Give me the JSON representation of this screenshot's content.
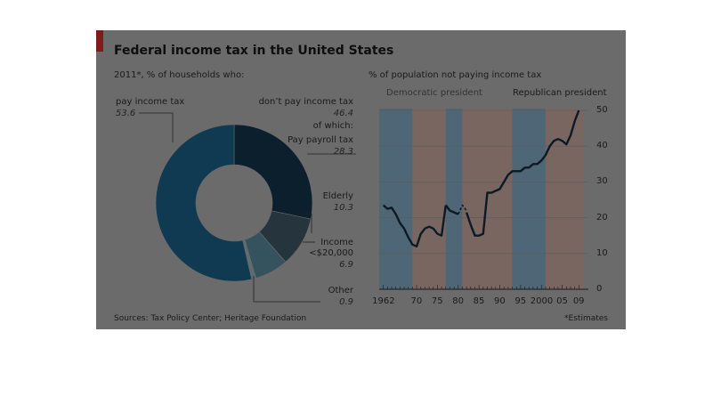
{
  "title": "Federal income tax in the United States",
  "left_subtitle": "2011*, % of households who:",
  "right_subtitle": "% of population not paying income tax",
  "sources": "Sources: Tax Policy Center; Heritage Foundation",
  "footnote": "*Estimates",
  "colors": {
    "panel_bg": "#6b6b6b",
    "pay": "#0f3a52",
    "dont_payroll": "#0b1f2c",
    "elderly": "#26343e",
    "income": "#35525f",
    "other": "#5e6c72",
    "dem_band": "#4f6676",
    "rep_band": "#7a6661",
    "line": "#0b1a24",
    "accent": "#7e1b1b"
  },
  "chart_data": [
    {
      "type": "pie",
      "variant": "donut",
      "title": "",
      "subtitle": "2011*, % of households who:",
      "labels": {
        "pay": "pay income tax",
        "dont_pay": "don’t pay income tax",
        "of_which": "of which:",
        "payroll": "Pay payroll tax",
        "elderly": "Elderly",
        "income": "Income\n<$20,000",
        "other": "Other"
      },
      "values_text": {
        "pay": "53.6",
        "dont_pay": "46.4",
        "payroll": "28.3",
        "elderly": "10.3",
        "income": "6.9",
        "other": "0.9"
      },
      "slices": [
        {
          "key": "payroll",
          "value": 28.3
        },
        {
          "key": "elderly",
          "value": 10.3
        },
        {
          "key": "income",
          "value": 6.9
        },
        {
          "key": "other",
          "value": 0.9
        },
        {
          "key": "pay",
          "value": 53.6
        }
      ]
    },
    {
      "type": "line",
      "title": "% of population not paying income tax",
      "legend": {
        "dem": "Democratic president",
        "rep": "Republican president",
        "placement": "top"
      },
      "x_ticks": [
        "1962",
        "70",
        "75",
        "80",
        "85",
        "90",
        "95",
        "2000",
        "05",
        "09"
      ],
      "x_tick_values": [
        1962,
        1970,
        1975,
        1980,
        1985,
        1990,
        1995,
        2000,
        2005,
        2009
      ],
      "y_ticks": [
        "0",
        "10",
        "20",
        "30",
        "40",
        "50"
      ],
      "y_tick_values": [
        0,
        10,
        20,
        30,
        40,
        50
      ],
      "xlim": [
        1961,
        2010
      ],
      "ylim": [
        0,
        50
      ],
      "y_axis_side": "right",
      "bands": [
        {
          "party": "dem",
          "start": 1961,
          "end": 1969
        },
        {
          "party": "rep",
          "start": 1969,
          "end": 1977
        },
        {
          "party": "dem",
          "start": 1977,
          "end": 1981
        },
        {
          "party": "rep",
          "start": 1981,
          "end": 1993
        },
        {
          "party": "dem",
          "start": 1993,
          "end": 2001
        },
        {
          "party": "rep",
          "start": 2001,
          "end": 2010
        }
      ],
      "series": [
        {
          "x": [
            1962,
            1963,
            1964,
            1965,
            1966,
            1967,
            1968,
            1969,
            1970,
            1971,
            1972,
            1973,
            1974,
            1975,
            1976,
            1977
          ],
          "y": [
            23.5,
            22.5,
            22.8,
            21,
            18.5,
            17,
            14.5,
            12.5,
            12,
            15.5,
            17,
            17.5,
            17,
            15.5,
            15,
            23.5
          ]
        },
        {
          "x": [
            1977,
            1978,
            1979,
            1980
          ],
          "y": [
            23.5,
            22,
            21.5,
            21
          ],
          "style": "solid"
        },
        {
          "x": [
            1980,
            1981,
            1982
          ],
          "y": [
            21,
            23.5,
            22
          ],
          "style": "dashed"
        },
        {
          "x": [
            1982,
            1983,
            1984,
            1985,
            1986,
            1987,
            1988,
            1989,
            1990,
            1991,
            1992,
            1993,
            1994,
            1995,
            1996,
            1997,
            1998,
            1999,
            2000,
            2001,
            2002,
            2003,
            2004,
            2005,
            2006,
            2007,
            2008,
            2009
          ],
          "y": [
            21.5,
            18,
            15,
            15,
            15.5,
            27,
            27,
            27.5,
            28,
            30,
            32,
            33,
            33,
            33,
            34,
            34,
            35,
            35,
            36,
            37.5,
            40,
            41.5,
            42,
            41.5,
            40.5,
            43,
            47,
            50
          ]
        }
      ]
    }
  ]
}
